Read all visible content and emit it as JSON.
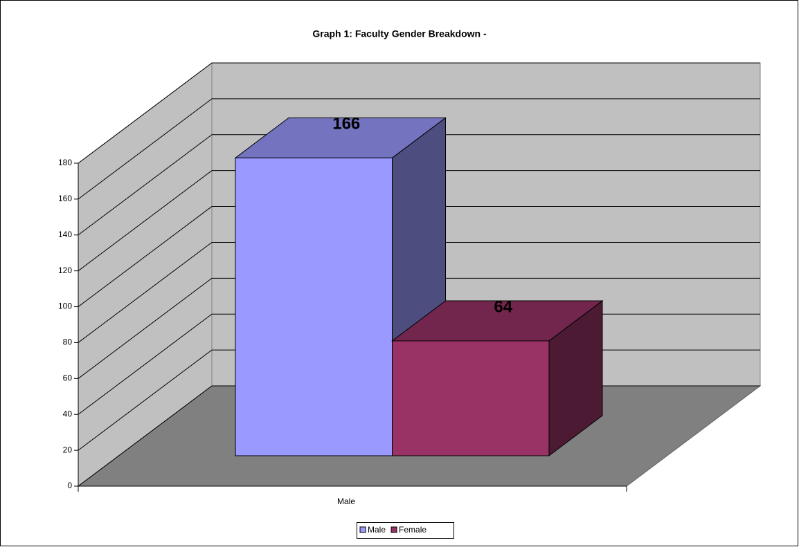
{
  "chart_data": {
    "type": "bar3d",
    "title": "Graph 1: Faculty Gender Breakdown -",
    "categories": [
      "Male"
    ],
    "series": [
      {
        "name": "Male",
        "color": "#9999ff",
        "values": [
          166
        ]
      },
      {
        "name": "Female",
        "color": "#993366",
        "values": [
          64
        ]
      }
    ],
    "ylim": [
      0,
      180
    ],
    "yticks": [
      0,
      20,
      40,
      60,
      80,
      100,
      120,
      140,
      160,
      180
    ],
    "grid": true,
    "legend": "bottom"
  }
}
